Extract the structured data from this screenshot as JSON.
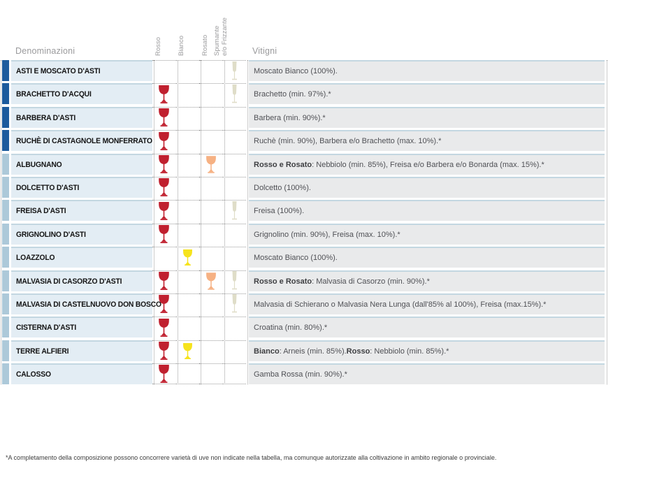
{
  "header": {
    "denominazioni_label": "Denominazioni",
    "vitigni_label": "Vitigni",
    "wine_type_columns": [
      {
        "id": "rosso",
        "lines": [
          "Rosso"
        ]
      },
      {
        "id": "bianco",
        "lines": [
          "Bianco"
        ]
      },
      {
        "id": "rosato",
        "lines": [
          "Rosato"
        ]
      },
      {
        "id": "spumante",
        "lines": [
          "Spumante",
          "e/o Frizzante"
        ]
      }
    ]
  },
  "colors": {
    "docg_bar": "#1d5b9d",
    "doc_bar": "#adc9d9",
    "rosso_glass": "#c0202f",
    "bianco_glass": "#f6e31c",
    "rosato_glass": "#f6b183",
    "spumante_glass": "#dfddc8",
    "label_cell_bg": "#e3edf4",
    "vitigni_cell_bg": "#e9eaeb",
    "row_separator": "#c3d7e1"
  },
  "table": {
    "rows": [
      {
        "denominazione": "ASTI E MOSCATO D'ASTI",
        "bar": "docg",
        "glasses": [
          "spumante"
        ],
        "vitigni": [
          {
            "text": "Moscato Bianco (100%)."
          }
        ]
      },
      {
        "denominazione": "BRACHETTO D'ACQUI",
        "bar": "docg",
        "glasses": [
          "rosso",
          "spumante"
        ],
        "vitigni": [
          {
            "text": "Brachetto (min. 97%).*"
          }
        ]
      },
      {
        "denominazione": "BARBERA D'ASTI",
        "bar": "docg",
        "glasses": [
          "rosso"
        ],
        "vitigni": [
          {
            "text": "Barbera (min. 90%).*"
          }
        ]
      },
      {
        "denominazione": "RUCHÈ DI CASTAGNOLE MONFERRATO",
        "bar": "docg",
        "glasses": [
          "rosso"
        ],
        "vitigni": [
          {
            "text": "Ruchè (min. 90%), Barbera e/o Brachetto (max. 10%).*"
          }
        ]
      },
      {
        "denominazione": "ALBUGNANO",
        "bar": "doc",
        "glasses": [
          "rosso",
          "rosato"
        ],
        "vitigni": [
          {
            "text": "Rosso e Rosato",
            "bold": true
          },
          {
            "text": ": Nebbiolo (min. 85%), Freisa e/o Barbera e/o Bonarda (max. 15%).*"
          }
        ]
      },
      {
        "denominazione": "DOLCETTO D'ASTI",
        "bar": "doc",
        "glasses": [
          "rosso"
        ],
        "vitigni": [
          {
            "text": "Dolcetto (100%)."
          }
        ]
      },
      {
        "denominazione": "FREISA D'ASTI",
        "bar": "doc",
        "glasses": [
          "rosso",
          "spumante"
        ],
        "vitigni": [
          {
            "text": "Freisa (100%)."
          }
        ]
      },
      {
        "denominazione": "GRIGNOLINO D'ASTI",
        "bar": "doc",
        "glasses": [
          "rosso"
        ],
        "vitigni": [
          {
            "text": "Grignolino (min. 90%), Freisa (max. 10%).*"
          }
        ]
      },
      {
        "denominazione": "LOAZZOLO",
        "bar": "doc",
        "glasses": [
          "bianco"
        ],
        "vitigni": [
          {
            "text": "Moscato Bianco (100%)."
          }
        ]
      },
      {
        "denominazione": "MALVASIA DI CASORZO D'ASTI",
        "bar": "doc",
        "glasses": [
          "rosso",
          "rosato",
          "spumante"
        ],
        "vitigni": [
          {
            "text": "Rosso e Rosato",
            "bold": true
          },
          {
            "text": ": Malvasia di Casorzo (min. 90%).*"
          }
        ]
      },
      {
        "denominazione": "MALVASIA DI CASTELNUOVO DON BOSCO",
        "bar": "doc",
        "glasses": [
          "rosso",
          "spumante"
        ],
        "vitigni": [
          {
            "text": "Malvasia di Schierano o Malvasia Nera Lunga (dall'85% al 100%), Freisa (max.15%).*"
          }
        ]
      },
      {
        "denominazione": "CISTERNA D'ASTI",
        "bar": "doc",
        "glasses": [
          "rosso"
        ],
        "vitigni": [
          {
            "text": "Croatina (min. 80%).*"
          }
        ]
      },
      {
        "denominazione": "TERRE ALFIERI",
        "bar": "doc",
        "glasses": [
          "rosso",
          "bianco"
        ],
        "vitigni": [
          {
            "text": "Bianco",
            "bold": true
          },
          {
            "text": ": Arneis (min. 85%). "
          },
          {
            "text": "Rosso",
            "bold": true
          },
          {
            "text": ": Nebbiolo (min. 85%).*"
          }
        ]
      },
      {
        "denominazione": "CALOSSO",
        "bar": "doc",
        "glasses": [
          "rosso"
        ],
        "vitigni": [
          {
            "text": "Gamba Rossa (min. 90%).*"
          }
        ]
      }
    ]
  },
  "footnote": "*A completamento della composizione possono concorrere varietà di uve non indicate nella tabella, ma comunque autorizzate alla coltivazione in ambito regionale o provinciale."
}
